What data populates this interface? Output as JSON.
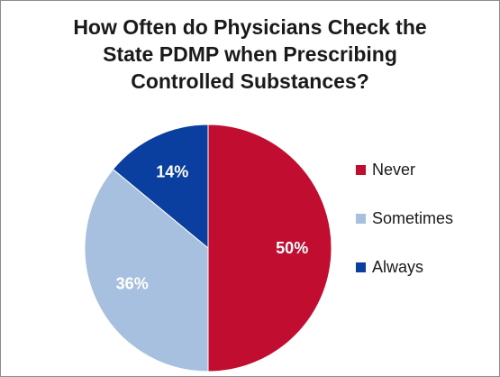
{
  "chart_data": {
    "type": "pie",
    "title_lines": [
      "How Often do Physicians Check the",
      "State PDMP when Prescribing",
      "Controlled Substances?"
    ],
    "categories": [
      "Never",
      "Sometimes",
      "Always"
    ],
    "values": [
      50,
      36,
      14
    ],
    "labels": [
      "50%",
      "36%",
      "14%"
    ],
    "colors": [
      "#c00d30",
      "#a8c0e0",
      "#0a3fa0"
    ],
    "legend_position": "right",
    "start_angle": "12 o'clock, clockwise"
  }
}
